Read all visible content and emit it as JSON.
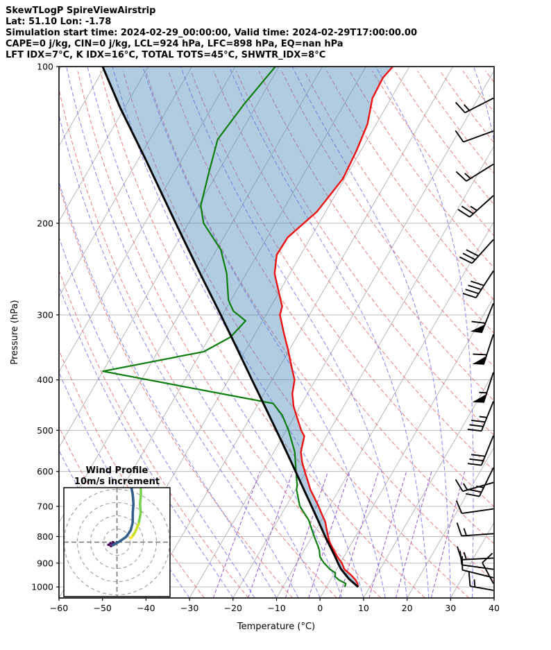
{
  "header": {
    "line1": "SkewTLogP SpireViewAirstrip",
    "line2": "Lat: 51.10   Lon: -1.78",
    "line3": "Simulation start time: 2024-02-29_00:00:00, Valid time: 2024-02-29T17:00:00.00",
    "line4": "CAPE=0 j/kg, CIN=0 j/kg, LCL=924 hPa, LFC=898 hPa, EQ=nan hPa",
    "line5": "LFT IDX=7°C, K IDX=16°C, TOTAL TOTS=45°C, SHWTR_IDX=8°C"
  },
  "axes": {
    "xlabel": "Temperature (°C)",
    "ylabel": "Pressure (hPa)",
    "x_ticks": [
      -60,
      -50,
      -40,
      -30,
      -20,
      -10,
      0,
      10,
      20,
      30,
      40
    ],
    "p_ticks": [
      100,
      200,
      300,
      400,
      500,
      600,
      700,
      800,
      900,
      1000
    ]
  },
  "chart_data": {
    "type": "skewt-logp",
    "title": "SkewTLogP SpireViewAirstrip",
    "station": {
      "lat": 51.1,
      "lon": -1.78
    },
    "indices": {
      "CAPE_jkg": 0,
      "CIN_jkg": 0,
      "LCL_hPa": 924,
      "LFC_hPa": 898,
      "EQ_hPa": "nan",
      "LFT_IDX_C": 7,
      "K_IDX_C": 16,
      "TOTAL_TOTS_C": 45,
      "SHWTR_IDX_C": 8
    },
    "t_range": [
      -60,
      40
    ],
    "p_range": [
      100,
      1050
    ],
    "skew_rotation_deg": 30,
    "isotherms_c": [
      -160,
      -150,
      -140,
      -130,
      -120,
      -110,
      -100,
      -90,
      -80,
      -70,
      -60,
      -50,
      -40,
      -30,
      -20,
      -10,
      0,
      10,
      20,
      30,
      40
    ],
    "dry_adiabats_theta_c": [
      -40,
      -30,
      -20,
      -10,
      0,
      10,
      20,
      30,
      40,
      50,
      60,
      70,
      80,
      90,
      100,
      110,
      120,
      130,
      140,
      150,
      160,
      170,
      180,
      190,
      200
    ],
    "moist_adiabats_t0_c": [
      -40,
      -30,
      -20,
      -15,
      -10,
      -5,
      0,
      5,
      10,
      15,
      20,
      25,
      30,
      35,
      40
    ],
    "mixing_ratios_gkg": [
      0.5,
      1,
      2,
      3,
      5,
      8,
      12,
      20
    ],
    "mixing_line_top_hpa": 600,
    "temperature_profile": [
      [
        1000,
        7.3
      ],
      [
        985,
        6.7
      ],
      [
        970,
        5.8
      ],
      [
        950,
        4.2
      ],
      [
        925,
        1.8
      ],
      [
        900,
        0.4
      ],
      [
        875,
        -1.5
      ],
      [
        850,
        -3.2
      ],
      [
        820,
        -5.2
      ],
      [
        800,
        -6.3
      ],
      [
        775,
        -7.6
      ],
      [
        750,
        -8.9
      ],
      [
        725,
        -10.7
      ],
      [
        700,
        -12.5
      ],
      [
        675,
        -14.5
      ],
      [
        650,
        -16.6
      ],
      [
        625,
        -18.4
      ],
      [
        600,
        -20.3
      ],
      [
        575,
        -22.2
      ],
      [
        550,
        -23.8
      ],
      [
        513,
        -25.1
      ],
      [
        500,
        -26.6
      ],
      [
        475,
        -29.0
      ],
      [
        450,
        -31.5
      ],
      [
        425,
        -33.5
      ],
      [
        400,
        -34.8
      ],
      [
        375,
        -37.5
      ],
      [
        350,
        -40.3
      ],
      [
        325,
        -43.5
      ],
      [
        300,
        -46.8
      ],
      [
        289,
        -47.4
      ],
      [
        275,
        -49.5
      ],
      [
        250,
        -53.5
      ],
      [
        230,
        -55.5
      ],
      [
        213,
        -55.3
      ],
      [
        190,
        -52.0
      ],
      [
        164,
        -50.4
      ],
      [
        145,
        -51.0
      ],
      [
        129,
        -52.0
      ],
      [
        115,
        -54.3
      ],
      [
        105,
        -54.6
      ],
      [
        100,
        -53.8
      ]
    ],
    "dewpoint_profile": [
      [
        1000,
        4.2
      ],
      [
        985,
        4.0
      ],
      [
        970,
        2.0
      ],
      [
        955,
        0.6
      ],
      [
        940,
        0.2
      ],
      [
        925,
        -1.5
      ],
      [
        910,
        -2.8
      ],
      [
        900,
        -3.7
      ],
      [
        875,
        -5.5
      ],
      [
        850,
        -6.5
      ],
      [
        834,
        -7.4
      ],
      [
        800,
        -9.5
      ],
      [
        775,
        -11.0
      ],
      [
        743,
        -13.0
      ],
      [
        700,
        -16.8
      ],
      [
        650,
        -19.8
      ],
      [
        638,
        -20.2
      ],
      [
        600,
        -22.3
      ],
      [
        550,
        -25.2
      ],
      [
        500,
        -29.5
      ],
      [
        468,
        -32.9
      ],
      [
        444,
        -36.6
      ],
      [
        385,
        -80.0
      ],
      [
        353,
        -59.4
      ],
      [
        331,
        -55.2
      ],
      [
        308,
        -53.9
      ],
      [
        295,
        -58.0
      ],
      [
        281,
        -60.6
      ],
      [
        250,
        -64.5
      ],
      [
        225,
        -69.0
      ],
      [
        200,
        -76.5
      ],
      [
        185,
        -79.5
      ],
      [
        160,
        -82.0
      ],
      [
        138,
        -84.4
      ],
      [
        118,
        -83.0
      ],
      [
        100,
        -80.8
      ]
    ],
    "parcel_profile": [
      [
        1000,
        7.3
      ],
      [
        965,
        4.1
      ],
      [
        924,
        1.0
      ],
      [
        900,
        -0.5
      ],
      [
        875,
        -2.0
      ],
      [
        850,
        -3.6
      ],
      [
        800,
        -7.0
      ],
      [
        750,
        -10.4
      ],
      [
        700,
        -14.1
      ],
      [
        650,
        -18.1
      ],
      [
        600,
        -22.4
      ],
      [
        550,
        -27.1
      ],
      [
        500,
        -32.3
      ],
      [
        450,
        -38.1
      ],
      [
        400,
        -44.6
      ],
      [
        350,
        -51.9
      ],
      [
        300,
        -60.4
      ],
      [
        250,
        -70.6
      ],
      [
        200,
        -82.9
      ],
      [
        150,
        -98.6
      ],
      [
        120,
        -111.0
      ],
      [
        100,
        -120.5
      ]
    ],
    "wind_barbs": [
      {
        "p": 115,
        "angle": 207,
        "pennants": 0,
        "full": 1,
        "half": 1
      },
      {
        "p": 133,
        "angle": 200,
        "pennants": 0,
        "full": 1,
        "half": 0
      },
      {
        "p": 154,
        "angle": 212,
        "pennants": 0,
        "full": 1,
        "half": 1
      },
      {
        "p": 177,
        "angle": 222,
        "pennants": 0,
        "full": 2,
        "half": 1
      },
      {
        "p": 215,
        "angle": 228,
        "pennants": 0,
        "full": 3,
        "half": 0
      },
      {
        "p": 247,
        "angle": 237,
        "pennants": 0,
        "full": 4,
        "half": 0
      },
      {
        "p": 285,
        "angle": 248,
        "pennants": 1,
        "full": 1,
        "half": 0
      },
      {
        "p": 327,
        "angle": 252,
        "pennants": 1,
        "full": 1,
        "half": 0
      },
      {
        "p": 387,
        "angle": 252,
        "pennants": 1,
        "full": 0,
        "half": 1
      },
      {
        "p": 440,
        "angle": 248,
        "pennants": 0,
        "full": 3,
        "half": 1
      },
      {
        "p": 512,
        "angle": 248,
        "pennants": 0,
        "full": 3,
        "half": 0
      },
      {
        "p": 590,
        "angle": 244,
        "pennants": 0,
        "full": 2,
        "half": 1
      },
      {
        "p": 630,
        "angle": 196,
        "pennants": 0,
        "full": 1,
        "half": 1
      },
      {
        "p": 708,
        "angle": 188,
        "pennants": 0,
        "full": 1,
        "half": 0
      },
      {
        "p": 790,
        "angle": 184,
        "pennants": 0,
        "full": 1,
        "half": 1
      },
      {
        "p": 880,
        "angle": 183,
        "pennants": 0,
        "full": 1,
        "half": 1
      },
      {
        "p": 925,
        "angle": 172,
        "pennants": 0,
        "full": 1,
        "half": 0
      },
      {
        "p": 960,
        "angle": 166,
        "pennants": 0,
        "full": 1,
        "half": 0
      },
      {
        "p": 985,
        "angle": 118,
        "pennants": 0,
        "full": 1,
        "half": 0
      },
      {
        "p": 1015,
        "angle": 170,
        "pennants": 0,
        "full": 1,
        "half": 1
      }
    ],
    "colors": {
      "temperature": "#ee1111",
      "dewpoint": "#0a7d0a",
      "parcel": "#000000",
      "shade": "#4682b4",
      "shade_opacity": 0.42,
      "isotherm": "#b0b0b0",
      "pressure_grid": "#b0b0b0",
      "dry_adiabat": "#ee6a6a",
      "moist_adiabat": "#6b6bf0",
      "mixing_ratio": "#9a4fd1",
      "barb": "#000000"
    }
  },
  "hodograph": {
    "title_line1": "Wind Profile",
    "title_line2": "10m/s increment",
    "ring_interval_ms": 10,
    "rings_ms": [
      10,
      20,
      30,
      40
    ],
    "segments": [
      {
        "name": "low-level",
        "color": "#440154",
        "width": 2.2,
        "markers": true,
        "points": [
          [
            0,
            0
          ],
          [
            -1.5,
            -1
          ],
          [
            -3,
            0
          ],
          [
            -2.5,
            -2
          ],
          [
            -5,
            -1
          ],
          [
            -6.5,
            -2
          ],
          [
            -4.5,
            -3
          ],
          [
            -3,
            -2.2
          ]
        ]
      },
      {
        "name": "mid-level",
        "color": "#31608d",
        "width": 3.6,
        "markers": false,
        "points": [
          [
            -3,
            -2.2
          ],
          [
            2,
            0.5
          ],
          [
            7,
            4
          ],
          [
            10.5,
            9
          ],
          [
            12,
            15
          ],
          [
            12,
            22
          ],
          [
            12.5,
            29
          ],
          [
            12,
            36
          ],
          [
            10.5,
            44
          ]
        ]
      },
      {
        "name": "upper-level",
        "color": "#7ad151",
        "width": 3.6,
        "markers": false,
        "points": [
          [
            18,
            44
          ],
          [
            18.2,
            36
          ],
          [
            17.5,
            29
          ],
          [
            18,
            22
          ],
          [
            16.5,
            14
          ]
        ]
      },
      {
        "name": "top-level",
        "color": "#c8e020",
        "width": 3.6,
        "markers": false,
        "points": [
          [
            16.5,
            14
          ],
          [
            14,
            8
          ],
          [
            11.5,
            4
          ]
        ]
      },
      {
        "name": "top-tip",
        "color": "#fde725",
        "width": 3.6,
        "markers": false,
        "points": [
          [
            11.5,
            4
          ],
          [
            10.5,
            3
          ]
        ]
      }
    ]
  }
}
